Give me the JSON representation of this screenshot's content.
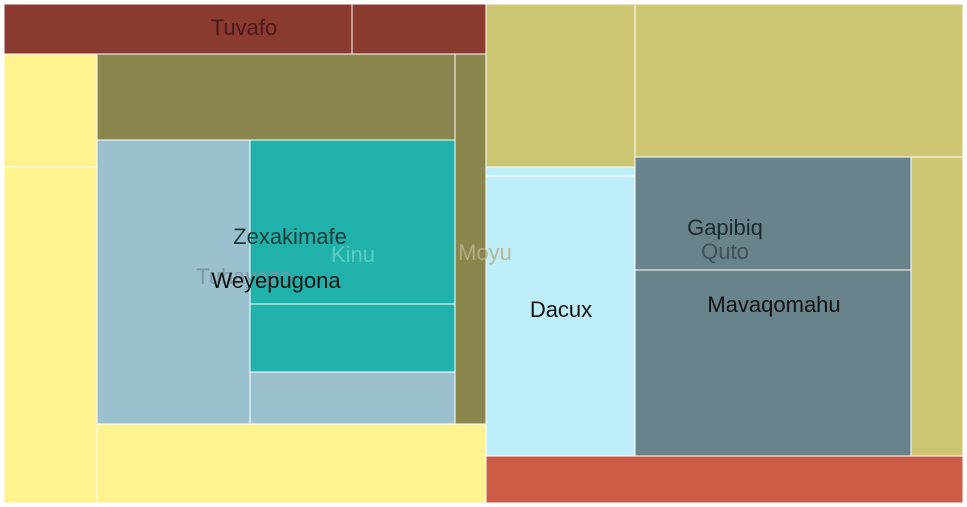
{
  "chart_data": {
    "type": "treemap",
    "title": "",
    "nodes": [
      {
        "label": "Tuvafo",
        "color": "#8b3a30",
        "label_color": "#3d1410",
        "label_opacity": 0.85
      },
      {
        "label": "",
        "color": "#8b3a30"
      },
      {
        "label": "",
        "color": "#fff38f"
      },
      {
        "label": "",
        "color": "#fff38f"
      },
      {
        "label": "",
        "color": "#fff38f"
      },
      {
        "label": "",
        "color": "#8b864e"
      },
      {
        "label": "Moyu",
        "color": "#8b864e",
        "label_color": "#b8b08a",
        "label_opacity": 0.9
      },
      {
        "label": "Tuhayazo",
        "color": "#9bc0ce",
        "label_color": "#7a96a0",
        "label_opacity": 0.9
      },
      {
        "label": "Zexakimafe",
        "color": "#20b2aa",
        "label_color": "#1c3a3a",
        "label_opacity": 1
      },
      {
        "label": "Kinu",
        "color": "#20b2aa",
        "label_color": "#5fd0c8",
        "label_opacity": 0.9
      },
      {
        "label": "",
        "color": "#9bc0ce"
      },
      {
        "label": "Weyepugona",
        "color": "#9bc0ce",
        "label_color": "#111111",
        "label_opacity": 1
      },
      {
        "label": "",
        "color": "#cdc673"
      },
      {
        "label": "",
        "color": "#cdc673"
      },
      {
        "label": "",
        "color": "#bfeefb"
      },
      {
        "label": "Dacux",
        "color": "#bfeefb",
        "label_color": "#111111",
        "label_opacity": 1
      },
      {
        "label": "Gapibiq",
        "color": "#68838b",
        "label_color": "#1a2a30",
        "label_opacity": 1
      },
      {
        "label": "Quto",
        "color": "#68838b",
        "label_color": "#3a4c52",
        "label_opacity": 0.9
      },
      {
        "label": "Mavaqomahu",
        "color": "#68838b",
        "label_color": "#111111",
        "label_opacity": 1
      },
      {
        "label": "",
        "color": "#cdc673"
      },
      {
        "label": "",
        "color": "#cd5b45"
      }
    ]
  }
}
